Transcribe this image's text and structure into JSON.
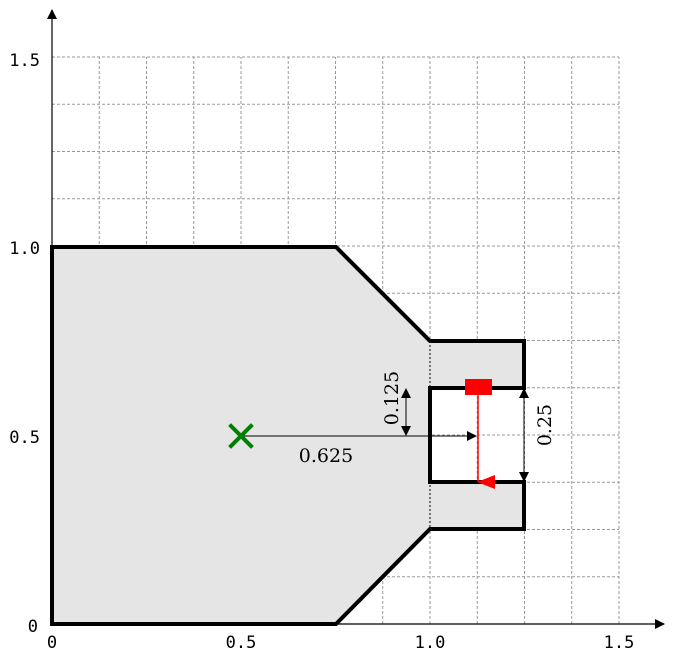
{
  "diagram": {
    "x_ticks": [
      "0",
      "0.5",
      "1.0",
      "1.5"
    ],
    "y_ticks": [
      "0",
      "0.5",
      "1.0",
      "1.5"
    ],
    "dimensions": {
      "horizontal": "0.625",
      "small_vertical": "0.125",
      "large_vertical": "0.25"
    },
    "colors": {
      "body_fill": "#e5e5e5",
      "outline": "#000000",
      "centroid_marker": "#008000",
      "load_arrow": "#ff0000",
      "grid": "#9a9a9a"
    },
    "markers": {
      "centroid": "green-x-marker",
      "load": "red-block-with-down-arrow"
    }
  }
}
